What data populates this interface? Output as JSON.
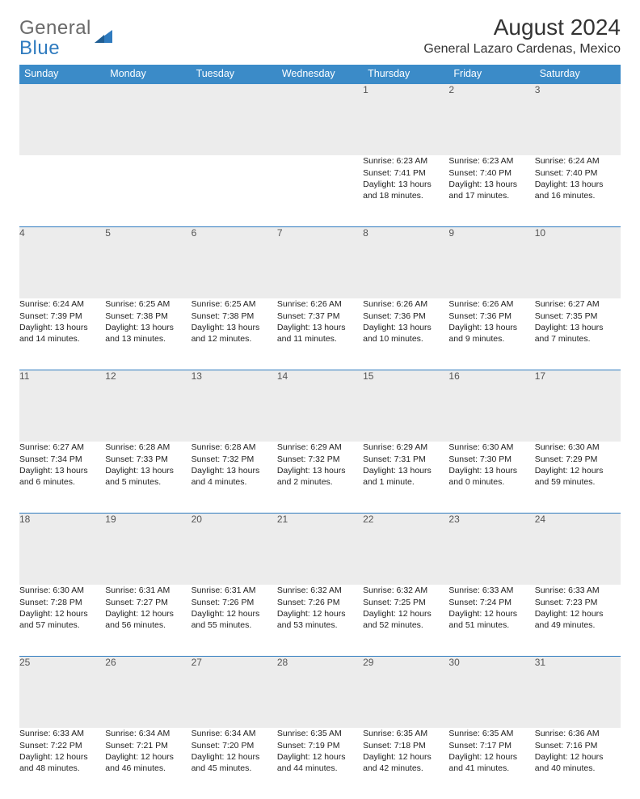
{
  "brand": {
    "line1": "General",
    "line2": "Blue"
  },
  "colors": {
    "header_bg": "#3b8bc8",
    "header_text": "#ffffff",
    "row_rule": "#2f7bbf",
    "daynum_bg": "#ececec",
    "body_text": "#222222",
    "logo_grey": "#6a6a6a",
    "logo_blue": "#2f7bbf",
    "page_bg": "#ffffff"
  },
  "title": "August 2024",
  "location": "General Lazaro Cardenas, Mexico",
  "weekdays": [
    "Sunday",
    "Monday",
    "Tuesday",
    "Wednesday",
    "Thursday",
    "Friday",
    "Saturday"
  ],
  "weeks": [
    {
      "nums": [
        "",
        "",
        "",
        "",
        "1",
        "2",
        "3"
      ],
      "cells": [
        null,
        null,
        null,
        null,
        {
          "sunrise": "Sunrise: 6:23 AM",
          "sunset": "Sunset: 7:41 PM",
          "d1": "Daylight: 13 hours",
          "d2": "and 18 minutes."
        },
        {
          "sunrise": "Sunrise: 6:23 AM",
          "sunset": "Sunset: 7:40 PM",
          "d1": "Daylight: 13 hours",
          "d2": "and 17 minutes."
        },
        {
          "sunrise": "Sunrise: 6:24 AM",
          "sunset": "Sunset: 7:40 PM",
          "d1": "Daylight: 13 hours",
          "d2": "and 16 minutes."
        }
      ]
    },
    {
      "nums": [
        "4",
        "5",
        "6",
        "7",
        "8",
        "9",
        "10"
      ],
      "cells": [
        {
          "sunrise": "Sunrise: 6:24 AM",
          "sunset": "Sunset: 7:39 PM",
          "d1": "Daylight: 13 hours",
          "d2": "and 14 minutes."
        },
        {
          "sunrise": "Sunrise: 6:25 AM",
          "sunset": "Sunset: 7:38 PM",
          "d1": "Daylight: 13 hours",
          "d2": "and 13 minutes."
        },
        {
          "sunrise": "Sunrise: 6:25 AM",
          "sunset": "Sunset: 7:38 PM",
          "d1": "Daylight: 13 hours",
          "d2": "and 12 minutes."
        },
        {
          "sunrise": "Sunrise: 6:26 AM",
          "sunset": "Sunset: 7:37 PM",
          "d1": "Daylight: 13 hours",
          "d2": "and 11 minutes."
        },
        {
          "sunrise": "Sunrise: 6:26 AM",
          "sunset": "Sunset: 7:36 PM",
          "d1": "Daylight: 13 hours",
          "d2": "and 10 minutes."
        },
        {
          "sunrise": "Sunrise: 6:26 AM",
          "sunset": "Sunset: 7:36 PM",
          "d1": "Daylight: 13 hours",
          "d2": "and 9 minutes."
        },
        {
          "sunrise": "Sunrise: 6:27 AM",
          "sunset": "Sunset: 7:35 PM",
          "d1": "Daylight: 13 hours",
          "d2": "and 7 minutes."
        }
      ]
    },
    {
      "nums": [
        "11",
        "12",
        "13",
        "14",
        "15",
        "16",
        "17"
      ],
      "cells": [
        {
          "sunrise": "Sunrise: 6:27 AM",
          "sunset": "Sunset: 7:34 PM",
          "d1": "Daylight: 13 hours",
          "d2": "and 6 minutes."
        },
        {
          "sunrise": "Sunrise: 6:28 AM",
          "sunset": "Sunset: 7:33 PM",
          "d1": "Daylight: 13 hours",
          "d2": "and 5 minutes."
        },
        {
          "sunrise": "Sunrise: 6:28 AM",
          "sunset": "Sunset: 7:32 PM",
          "d1": "Daylight: 13 hours",
          "d2": "and 4 minutes."
        },
        {
          "sunrise": "Sunrise: 6:29 AM",
          "sunset": "Sunset: 7:32 PM",
          "d1": "Daylight: 13 hours",
          "d2": "and 2 minutes."
        },
        {
          "sunrise": "Sunrise: 6:29 AM",
          "sunset": "Sunset: 7:31 PM",
          "d1": "Daylight: 13 hours",
          "d2": "and 1 minute."
        },
        {
          "sunrise": "Sunrise: 6:30 AM",
          "sunset": "Sunset: 7:30 PM",
          "d1": "Daylight: 13 hours",
          "d2": "and 0 minutes."
        },
        {
          "sunrise": "Sunrise: 6:30 AM",
          "sunset": "Sunset: 7:29 PM",
          "d1": "Daylight: 12 hours",
          "d2": "and 59 minutes."
        }
      ]
    },
    {
      "nums": [
        "18",
        "19",
        "20",
        "21",
        "22",
        "23",
        "24"
      ],
      "cells": [
        {
          "sunrise": "Sunrise: 6:30 AM",
          "sunset": "Sunset: 7:28 PM",
          "d1": "Daylight: 12 hours",
          "d2": "and 57 minutes."
        },
        {
          "sunrise": "Sunrise: 6:31 AM",
          "sunset": "Sunset: 7:27 PM",
          "d1": "Daylight: 12 hours",
          "d2": "and 56 minutes."
        },
        {
          "sunrise": "Sunrise: 6:31 AM",
          "sunset": "Sunset: 7:26 PM",
          "d1": "Daylight: 12 hours",
          "d2": "and 55 minutes."
        },
        {
          "sunrise": "Sunrise: 6:32 AM",
          "sunset": "Sunset: 7:26 PM",
          "d1": "Daylight: 12 hours",
          "d2": "and 53 minutes."
        },
        {
          "sunrise": "Sunrise: 6:32 AM",
          "sunset": "Sunset: 7:25 PM",
          "d1": "Daylight: 12 hours",
          "d2": "and 52 minutes."
        },
        {
          "sunrise": "Sunrise: 6:33 AM",
          "sunset": "Sunset: 7:24 PM",
          "d1": "Daylight: 12 hours",
          "d2": "and 51 minutes."
        },
        {
          "sunrise": "Sunrise: 6:33 AM",
          "sunset": "Sunset: 7:23 PM",
          "d1": "Daylight: 12 hours",
          "d2": "and 49 minutes."
        }
      ]
    },
    {
      "nums": [
        "25",
        "26",
        "27",
        "28",
        "29",
        "30",
        "31"
      ],
      "cells": [
        {
          "sunrise": "Sunrise: 6:33 AM",
          "sunset": "Sunset: 7:22 PM",
          "d1": "Daylight: 12 hours",
          "d2": "and 48 minutes."
        },
        {
          "sunrise": "Sunrise: 6:34 AM",
          "sunset": "Sunset: 7:21 PM",
          "d1": "Daylight: 12 hours",
          "d2": "and 46 minutes."
        },
        {
          "sunrise": "Sunrise: 6:34 AM",
          "sunset": "Sunset: 7:20 PM",
          "d1": "Daylight: 12 hours",
          "d2": "and 45 minutes."
        },
        {
          "sunrise": "Sunrise: 6:35 AM",
          "sunset": "Sunset: 7:19 PM",
          "d1": "Daylight: 12 hours",
          "d2": "and 44 minutes."
        },
        {
          "sunrise": "Sunrise: 6:35 AM",
          "sunset": "Sunset: 7:18 PM",
          "d1": "Daylight: 12 hours",
          "d2": "and 42 minutes."
        },
        {
          "sunrise": "Sunrise: 6:35 AM",
          "sunset": "Sunset: 7:17 PM",
          "d1": "Daylight: 12 hours",
          "d2": "and 41 minutes."
        },
        {
          "sunrise": "Sunrise: 6:36 AM",
          "sunset": "Sunset: 7:16 PM",
          "d1": "Daylight: 12 hours",
          "d2": "and 40 minutes."
        }
      ]
    }
  ]
}
